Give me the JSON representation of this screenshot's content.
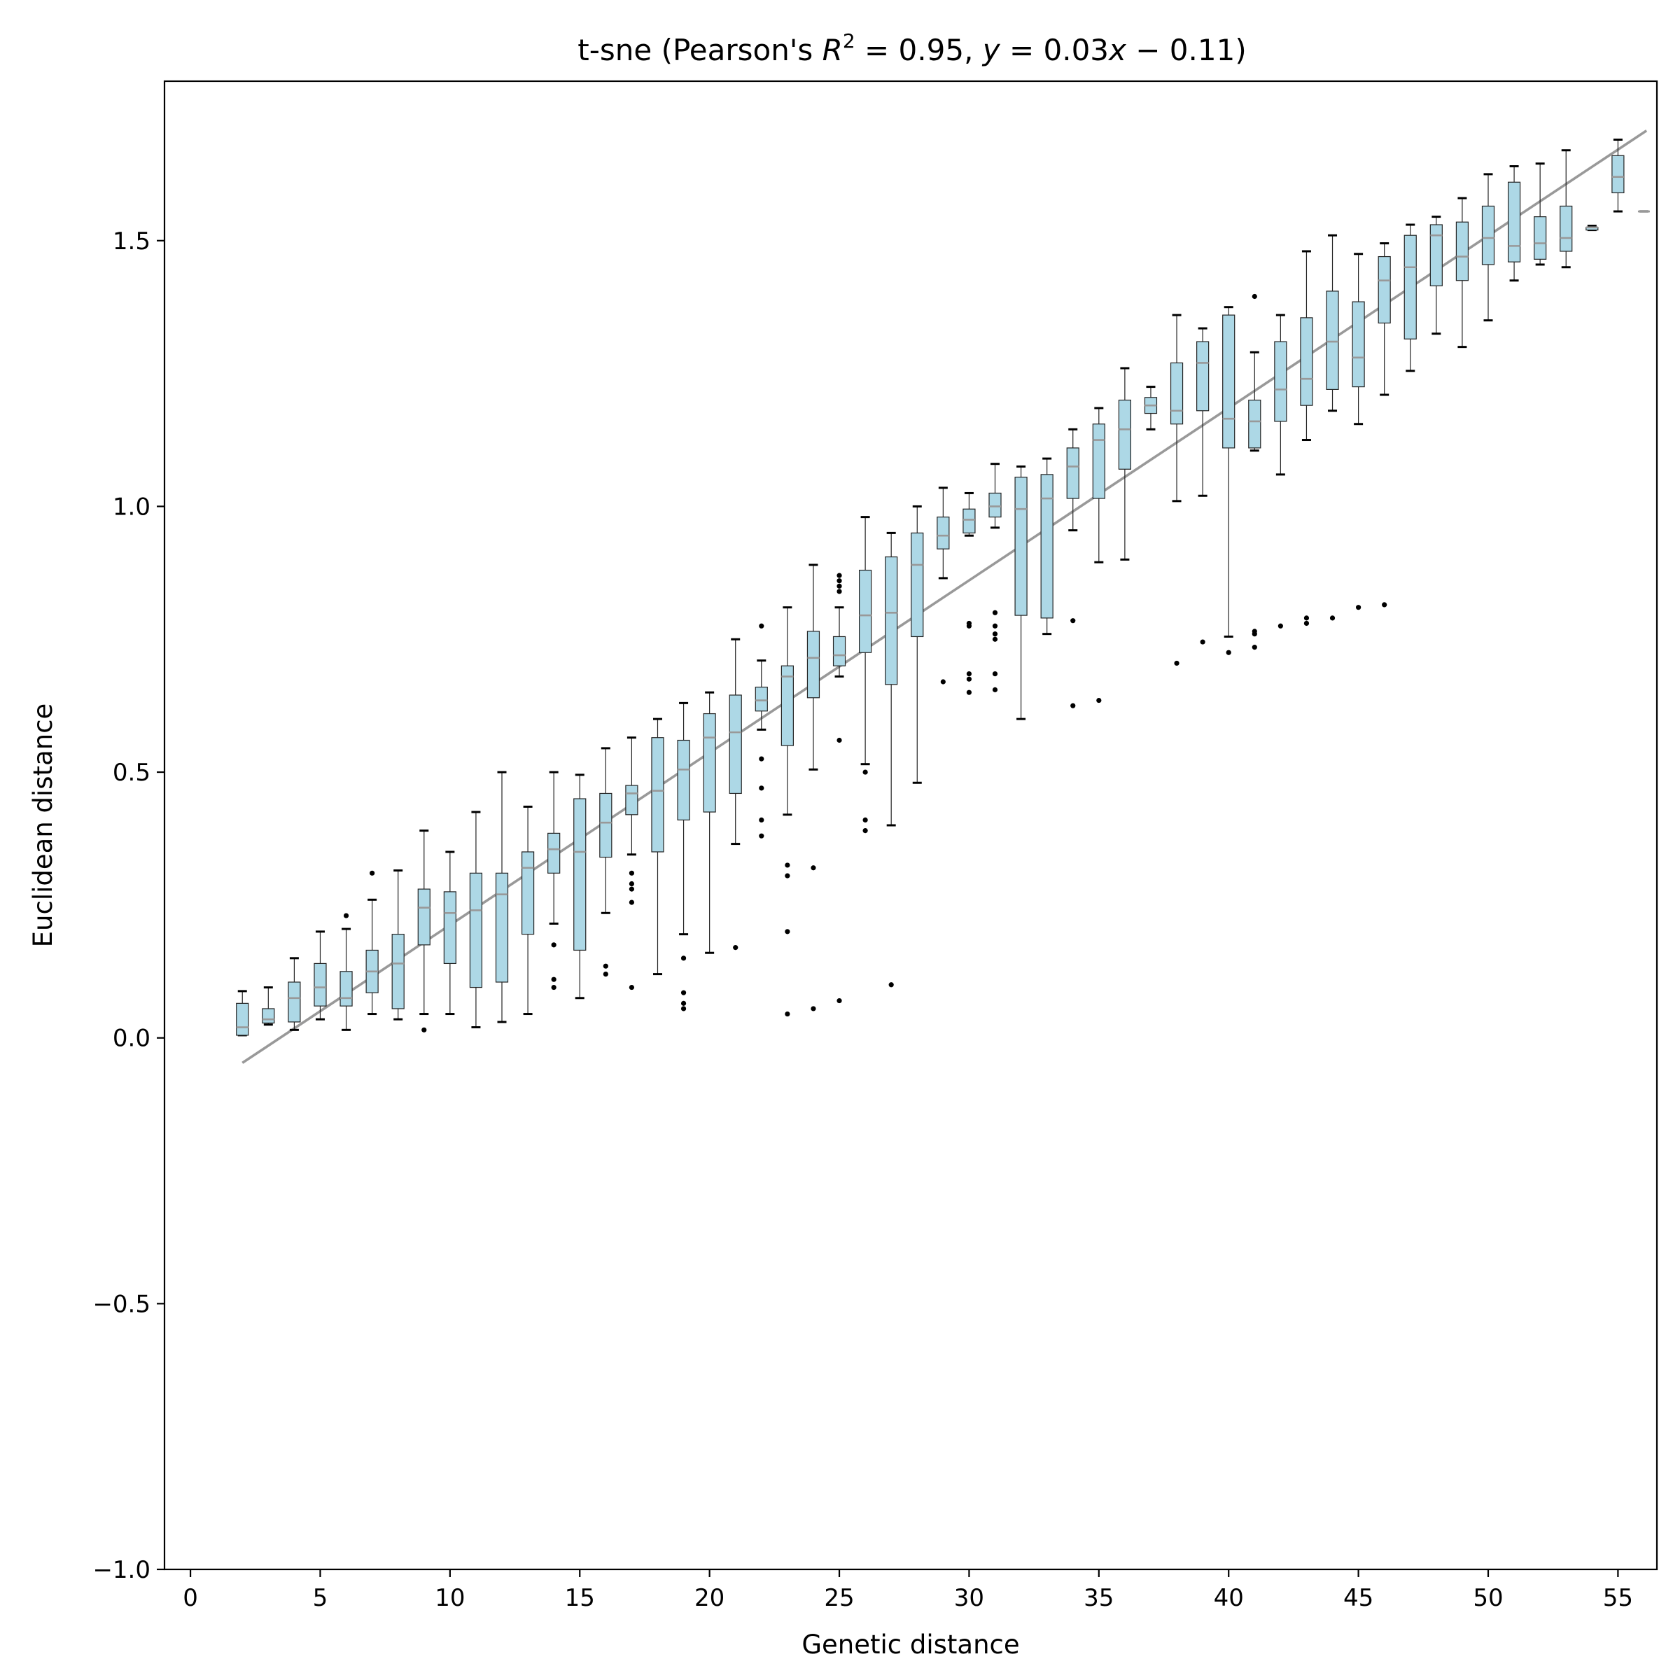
{
  "chart_data": {
    "type": "box",
    "title": {
      "prefix": "t-sne (Pearson's ",
      "r_symbol": "R",
      "r_exponent": "2",
      "r_value": " = 0.95, ",
      "y_symbol": "y",
      "eq_middle": " = 0.03",
      "x_symbol": "x",
      "eq_end": " − 0.11)"
    },
    "xlabel": "Genetic distance",
    "ylabel": "Euclidean distance",
    "xlim": [
      -1,
      56.5
    ],
    "ylim": [
      -1.0,
      1.8
    ],
    "xticks": [
      0,
      5,
      10,
      15,
      20,
      25,
      30,
      35,
      40,
      45,
      50,
      55
    ],
    "xtick_labels": [
      "0",
      "5",
      "10",
      "15",
      "20",
      "25",
      "30",
      "35",
      "40",
      "45",
      "50",
      "55"
    ],
    "yticks": [
      -1.0,
      -0.5,
      0.0,
      0.5,
      1.0,
      1.5
    ],
    "ytick_labels": [
      "−1.0",
      "−0.5",
      "0.0",
      "0.5",
      "1.0",
      "1.5"
    ],
    "grid": false,
    "colors": {
      "box_fill": "#add8e6",
      "median": "#999999",
      "regression": "#999999"
    },
    "regression_line": {
      "x": [
        2,
        56.1
      ],
      "y": [
        -0.047,
        1.707
      ]
    },
    "boxes": [
      {
        "x": 2,
        "low": 0.005,
        "q1": 0.005,
        "median": 0.02,
        "q3": 0.065,
        "high": 0.088,
        "fliers": []
      },
      {
        "x": 3,
        "low": 0.025,
        "q1": 0.028,
        "median": 0.035,
        "q3": 0.055,
        "high": 0.095,
        "fliers": []
      },
      {
        "x": 4,
        "low": 0.015,
        "q1": 0.03,
        "median": 0.075,
        "q3": 0.105,
        "high": 0.15,
        "fliers": []
      },
      {
        "x": 5,
        "low": 0.035,
        "q1": 0.06,
        "median": 0.095,
        "q3": 0.14,
        "high": 0.2,
        "fliers": []
      },
      {
        "x": 6,
        "low": 0.015,
        "q1": 0.06,
        "median": 0.075,
        "q3": 0.125,
        "high": 0.205,
        "fliers": [
          0.23
        ]
      },
      {
        "x": 7,
        "low": 0.045,
        "q1": 0.085,
        "median": 0.125,
        "q3": 0.165,
        "high": 0.26,
        "fliers": [
          0.31
        ]
      },
      {
        "x": 8,
        "low": 0.035,
        "q1": 0.055,
        "median": 0.14,
        "q3": 0.195,
        "high": 0.315,
        "fliers": []
      },
      {
        "x": 9,
        "low": 0.045,
        "q1": 0.175,
        "median": 0.245,
        "q3": 0.28,
        "high": 0.39,
        "fliers": [
          0.015
        ]
      },
      {
        "x": 10,
        "low": 0.045,
        "q1": 0.14,
        "median": 0.235,
        "q3": 0.275,
        "high": 0.35,
        "fliers": []
      },
      {
        "x": 11,
        "low": 0.02,
        "q1": 0.095,
        "median": 0.24,
        "q3": 0.31,
        "high": 0.425,
        "fliers": []
      },
      {
        "x": 12,
        "low": 0.03,
        "q1": 0.105,
        "median": 0.27,
        "q3": 0.31,
        "high": 0.5,
        "fliers": []
      },
      {
        "x": 13,
        "low": 0.045,
        "q1": 0.195,
        "median": 0.32,
        "q3": 0.35,
        "high": 0.435,
        "fliers": []
      },
      {
        "x": 14,
        "low": 0.215,
        "q1": 0.31,
        "median": 0.355,
        "q3": 0.385,
        "high": 0.5,
        "fliers": [
          0.175,
          0.11,
          0.095
        ]
      },
      {
        "x": 15,
        "low": 0.075,
        "q1": 0.165,
        "median": 0.35,
        "q3": 0.45,
        "high": 0.495,
        "fliers": []
      },
      {
        "x": 16,
        "low": 0.235,
        "q1": 0.34,
        "median": 0.405,
        "q3": 0.46,
        "high": 0.545,
        "fliers": [
          0.135,
          0.12
        ]
      },
      {
        "x": 17,
        "low": 0.345,
        "q1": 0.42,
        "median": 0.46,
        "q3": 0.475,
        "high": 0.565,
        "fliers": [
          0.31,
          0.29,
          0.28,
          0.255,
          0.095
        ]
      },
      {
        "x": 18,
        "low": 0.12,
        "q1": 0.35,
        "median": 0.465,
        "q3": 0.565,
        "high": 0.6,
        "fliers": []
      },
      {
        "x": 19,
        "low": 0.195,
        "q1": 0.41,
        "median": 0.505,
        "q3": 0.56,
        "high": 0.63,
        "fliers": [
          0.15,
          0.085,
          0.065,
          0.055
        ]
      },
      {
        "x": 20,
        "low": 0.16,
        "q1": 0.425,
        "median": 0.565,
        "q3": 0.61,
        "high": 0.65,
        "fliers": []
      },
      {
        "x": 21,
        "low": 0.365,
        "q1": 0.46,
        "median": 0.575,
        "q3": 0.645,
        "high": 0.75,
        "fliers": [
          0.17
        ]
      },
      {
        "x": 22,
        "low": 0.58,
        "q1": 0.615,
        "median": 0.635,
        "q3": 0.66,
        "high": 0.71,
        "fliers": [
          0.775,
          0.525,
          0.47,
          0.41,
          0.38
        ]
      },
      {
        "x": 23,
        "low": 0.42,
        "q1": 0.55,
        "median": 0.68,
        "q3": 0.7,
        "high": 0.81,
        "fliers": [
          0.325,
          0.305,
          0.2,
          0.045
        ]
      },
      {
        "x": 24,
        "low": 0.505,
        "q1": 0.64,
        "median": 0.715,
        "q3": 0.765,
        "high": 0.89,
        "fliers": [
          0.32,
          0.055
        ]
      },
      {
        "x": 25,
        "low": 0.68,
        "q1": 0.7,
        "median": 0.72,
        "q3": 0.755,
        "high": 0.81,
        "fliers": [
          0.87,
          0.86,
          0.85,
          0.84,
          0.56,
          0.07
        ]
      },
      {
        "x": 26,
        "low": 0.515,
        "q1": 0.725,
        "median": 0.795,
        "q3": 0.88,
        "high": 0.98,
        "fliers": [
          0.5,
          0.41,
          0.39
        ]
      },
      {
        "x": 27,
        "low": 0.4,
        "q1": 0.665,
        "median": 0.8,
        "q3": 0.905,
        "high": 0.95,
        "fliers": [
          0.1
        ]
      },
      {
        "x": 28,
        "low": 0.48,
        "q1": 0.755,
        "median": 0.89,
        "q3": 0.95,
        "high": 1.0,
        "fliers": []
      },
      {
        "x": 29,
        "low": 0.865,
        "q1": 0.92,
        "median": 0.945,
        "q3": 0.98,
        "high": 1.035,
        "fliers": [
          0.67
        ]
      },
      {
        "x": 30,
        "low": 0.945,
        "q1": 0.95,
        "median": 0.975,
        "q3": 0.995,
        "high": 1.025,
        "fliers": [
          0.78,
          0.775,
          0.685,
          0.675,
          0.65
        ]
      },
      {
        "x": 31,
        "low": 0.96,
        "q1": 0.98,
        "median": 1.0,
        "q3": 1.025,
        "high": 1.08,
        "fliers": [
          0.8,
          0.775,
          0.76,
          0.75,
          0.685,
          0.655
        ]
      },
      {
        "x": 32,
        "low": 0.6,
        "q1": 0.795,
        "median": 0.995,
        "q3": 1.055,
        "high": 1.075,
        "fliers": []
      },
      {
        "x": 33,
        "low": 0.76,
        "q1": 0.79,
        "median": 1.015,
        "q3": 1.06,
        "high": 1.09,
        "fliers": []
      },
      {
        "x": 34,
        "low": 0.955,
        "q1": 1.015,
        "median": 1.075,
        "q3": 1.11,
        "high": 1.145,
        "fliers": [
          0.785,
          0.625
        ]
      },
      {
        "x": 35,
        "low": 0.895,
        "q1": 1.015,
        "median": 1.125,
        "q3": 1.155,
        "high": 1.185,
        "fliers": [
          0.635
        ]
      },
      {
        "x": 36,
        "low": 0.9,
        "q1": 1.07,
        "median": 1.145,
        "q3": 1.2,
        "high": 1.26,
        "fliers": []
      },
      {
        "x": 37,
        "low": 1.145,
        "q1": 1.175,
        "median": 1.19,
        "q3": 1.205,
        "high": 1.225,
        "fliers": []
      },
      {
        "x": 38,
        "low": 1.01,
        "q1": 1.155,
        "median": 1.18,
        "q3": 1.27,
        "high": 1.36,
        "fliers": [
          0.705
        ]
      },
      {
        "x": 39,
        "low": 1.02,
        "q1": 1.18,
        "median": 1.27,
        "q3": 1.31,
        "high": 1.335,
        "fliers": [
          0.745
        ]
      },
      {
        "x": 40,
        "low": 0.755,
        "q1": 1.11,
        "median": 1.165,
        "q3": 1.36,
        "high": 1.375,
        "fliers": [
          0.725
        ]
      },
      {
        "x": 41,
        "low": 1.105,
        "q1": 1.11,
        "median": 1.16,
        "q3": 1.2,
        "high": 1.29,
        "fliers": [
          1.395,
          0.765,
          0.76,
          0.735
        ]
      },
      {
        "x": 42,
        "low": 1.06,
        "q1": 1.16,
        "median": 1.22,
        "q3": 1.31,
        "high": 1.36,
        "fliers": [
          0.775
        ]
      },
      {
        "x": 43,
        "low": 1.125,
        "q1": 1.19,
        "median": 1.24,
        "q3": 1.355,
        "high": 1.48,
        "fliers": [
          0.79,
          0.78
        ]
      },
      {
        "x": 44,
        "low": 1.18,
        "q1": 1.22,
        "median": 1.31,
        "q3": 1.405,
        "high": 1.51,
        "fliers": [
          0.79
        ]
      },
      {
        "x": 45,
        "low": 1.155,
        "q1": 1.225,
        "median": 1.28,
        "q3": 1.385,
        "high": 1.475,
        "fliers": [
          0.81
        ]
      },
      {
        "x": 46,
        "low": 1.21,
        "q1": 1.345,
        "median": 1.425,
        "q3": 1.47,
        "high": 1.495,
        "fliers": [
          0.815
        ]
      },
      {
        "x": 47,
        "low": 1.255,
        "q1": 1.315,
        "median": 1.45,
        "q3": 1.51,
        "high": 1.53,
        "fliers": []
      },
      {
        "x": 48,
        "low": 1.325,
        "q1": 1.415,
        "median": 1.51,
        "q3": 1.53,
        "high": 1.545,
        "fliers": []
      },
      {
        "x": 49,
        "low": 1.3,
        "q1": 1.425,
        "median": 1.47,
        "q3": 1.535,
        "high": 1.58,
        "fliers": []
      },
      {
        "x": 50,
        "low": 1.35,
        "q1": 1.455,
        "median": 1.505,
        "q3": 1.565,
        "high": 1.625,
        "fliers": []
      },
      {
        "x": 51,
        "low": 1.425,
        "q1": 1.46,
        "median": 1.49,
        "q3": 1.61,
        "high": 1.64,
        "fliers": []
      },
      {
        "x": 52,
        "low": 1.455,
        "q1": 1.465,
        "median": 1.495,
        "q3": 1.545,
        "high": 1.645,
        "fliers": []
      },
      {
        "x": 53,
        "low": 1.45,
        "q1": 1.48,
        "median": 1.505,
        "q3": 1.565,
        "high": 1.67,
        "fliers": []
      },
      {
        "x": 54,
        "low": 1.52,
        "q1": 1.52,
        "median": 1.525,
        "q3": 1.525,
        "high": 1.528,
        "fliers": []
      },
      {
        "x": 55,
        "low": 1.555,
        "q1": 1.59,
        "median": 1.62,
        "q3": 1.66,
        "high": 1.69,
        "fliers": []
      },
      {
        "x": 56,
        "low": 1.555,
        "q1": 1.555,
        "median": 1.555,
        "q3": 1.555,
        "high": 1.555,
        "fliers": []
      }
    ]
  }
}
